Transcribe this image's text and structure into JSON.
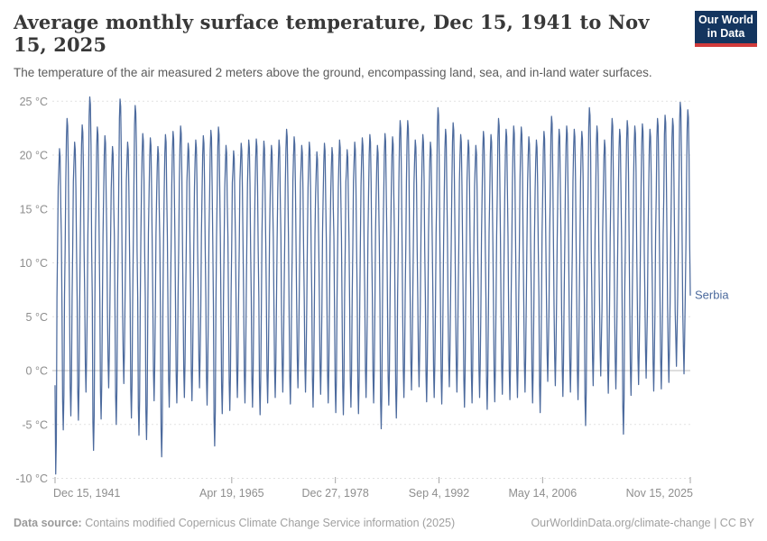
{
  "header": {
    "title": "Average monthly surface temperature, Dec 15, 1941 to Nov 15, 2025",
    "subtitle": "The temperature of the air measured 2 meters above the ground, encompassing land, sea, and in-land water surfaces.",
    "logo": {
      "line1": "Our World",
      "line2": "in Data",
      "bg_color": "#14355f",
      "bar_color": "#d13b3b"
    }
  },
  "chart_data": {
    "type": "line",
    "title": "Average monthly surface temperature, Dec 15, 1941 to Nov 15, 2025",
    "series_label": "Serbia",
    "line_color": "#4C6A9D",
    "grid_color": "#e2e2e2",
    "zero_line_color": "#bcbcbc",
    "tick_color": "#a6a6a6",
    "axis_text_color": "#8e8e8e",
    "x_axis": {
      "tick_labels": [
        "Dec 15, 1941",
        "Apr 19, 1965",
        "Dec 27, 1978",
        "Sep 4, 1992",
        "May 14, 2006",
        "Nov 15, 2025"
      ],
      "tick_positions_decimal_year": [
        1941.955,
        1965.297,
        1978.988,
        1992.676,
        2006.366,
        2025.873
      ],
      "range": [
        1941.955,
        2025.873
      ]
    },
    "y_axis": {
      "ticks": [
        -10,
        -5,
        0,
        5,
        10,
        15,
        20,
        25
      ],
      "tick_labels": [
        "-10 °C",
        "-5 °C",
        "0 °C",
        "5 °C",
        "10 °C",
        "15 °C",
        "20 °C",
        "25 °C"
      ],
      "suffix": " °C",
      "range": [
        -10,
        25.4
      ],
      "grid": "dashed"
    },
    "start": {
      "label": "Dec 1941",
      "value": -1.4
    },
    "end": {
      "label": "Nov 2025",
      "value": 7.0
    },
    "first_year": 1942,
    "summer_max_by_year": [
      20.6,
      23.4,
      21.2,
      22.8,
      25.4,
      22.6,
      21.8,
      20.8,
      25.2,
      21.2,
      24.6,
      22.0,
      21.6,
      20.8,
      21.9,
      22.2,
      22.7,
      21.1,
      21.4,
      21.8,
      22.3,
      22.6,
      20.9,
      20.4,
      21.1,
      21.4,
      21.5,
      21.3,
      20.9,
      21.4,
      22.4,
      21.7,
      20.9,
      21.2,
      20.3,
      21.1,
      20.7,
      21.4,
      20.5,
      21.2,
      21.6,
      21.9,
      20.9,
      22.0,
      21.7,
      23.2,
      23.2,
      21.4,
      21.9,
      21.2,
      24.4,
      22.4,
      23.0,
      21.9,
      21.4,
      20.9,
      22.2,
      21.9,
      23.4,
      22.4,
      22.7,
      22.6,
      21.7,
      21.4,
      22.2,
      23.6,
      22.4,
      22.7,
      22.4,
      22.2,
      24.4,
      22.7,
      21.4,
      23.4,
      22.4,
      23.2,
      22.7,
      22.9,
      22.4,
      23.4,
      23.7,
      23.4,
      24.9,
      24.2
    ],
    "winter_min_by_year": [
      -9.6,
      -5.5,
      -4.2,
      -4.6,
      -2.0,
      -7.4,
      -4.5,
      -1.6,
      -5.0,
      -1.2,
      -4.4,
      -6.0,
      -6.4,
      -2.8,
      -8.0,
      -3.4,
      -3.0,
      -2.5,
      -2.8,
      -1.6,
      -3.2,
      -7.0,
      -4.0,
      -3.7,
      -2.5,
      -3.0,
      -3.4,
      -4.1,
      -3.0,
      -2.5,
      -2.0,
      -3.1,
      -1.6,
      -2.0,
      -3.4,
      -2.2,
      -3.0,
      -3.9,
      -4.1,
      -3.4,
      -4.0,
      -2.5,
      -3.0,
      -5.4,
      -3.2,
      -4.4,
      -2.5,
      -1.8,
      -1.5,
      -2.9,
      -2.5,
      -3.1,
      -1.5,
      -2.0,
      -3.4,
      -3.0,
      -2.5,
      -3.6,
      -2.9,
      -2.2,
      -2.7,
      -2.5,
      -2.0,
      -3.0,
      -3.9,
      -1.0,
      -1.4,
      -2.4,
      -2.0,
      -2.7,
      -5.1,
      -1.4,
      -0.5,
      -2.1,
      -1.7,
      -5.9,
      -2.3,
      -1.3,
      -0.7,
      -1.9,
      -1.7,
      -1.1,
      0.4,
      -0.3
    ],
    "month_model": {
      "feb_offset": 3.2,
      "mar": 6.3,
      "apr": 12.1,
      "may": 16.9,
      "jun_offset": -1.8,
      "aug_offset": -0.7,
      "sep_offset": -4.8,
      "oct": 11.8,
      "nov": 6.2,
      "dec_offset": 2.6,
      "jitter_amp": 0.7
    }
  },
  "footer": {
    "data_source_label": "Data source:",
    "data_source_value": "Contains modified Copernicus Climate Change Service information (2025)",
    "credit": "OurWorldinData.org/climate-change | CC BY"
  }
}
